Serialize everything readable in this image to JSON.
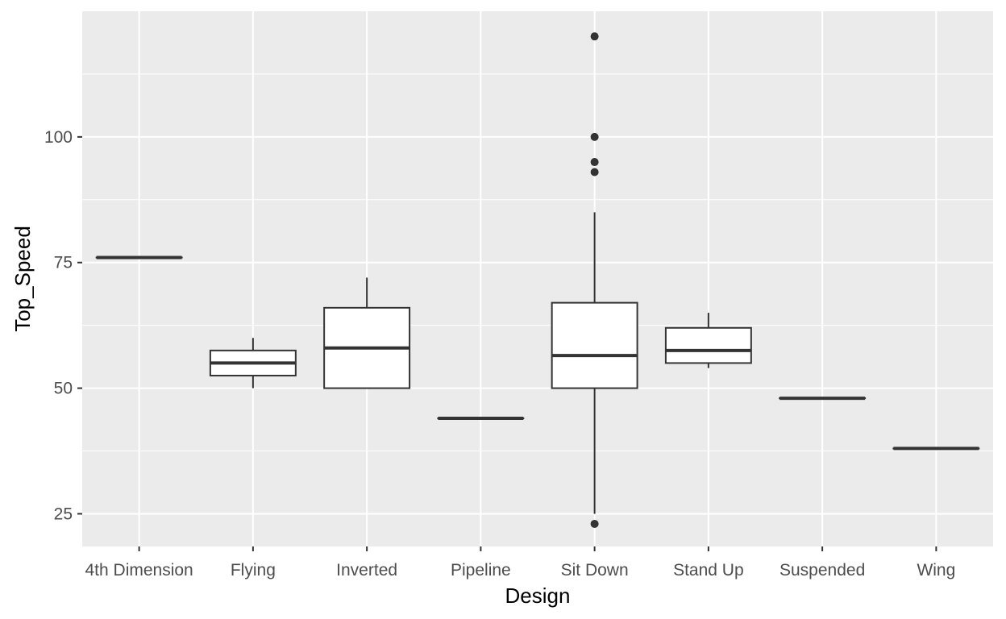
{
  "chart_data": {
    "type": "boxplot",
    "title": "",
    "xlabel": "Design",
    "ylabel": "Top_Speed",
    "ylim": [
      18.5,
      125
    ],
    "yticks": [
      25,
      50,
      75,
      100
    ],
    "y_minor_ticks": [
      37.5,
      62.5,
      87.5,
      112.5
    ],
    "grid": true,
    "legend": "none",
    "categories": [
      "4th Dimension",
      "Flying",
      "Inverted",
      "Pipeline",
      "Sit Down",
      "Stand Up",
      "Suspended",
      "Wing"
    ],
    "boxes": [
      {
        "category": "4th Dimension",
        "min": 76,
        "q1": 76,
        "median": 76,
        "q3": 76,
        "max": 76,
        "outliers": []
      },
      {
        "category": "Flying",
        "min": 50,
        "q1": 52.5,
        "median": 55,
        "q3": 57.5,
        "max": 60,
        "outliers": []
      },
      {
        "category": "Inverted",
        "min": 50,
        "q1": 50,
        "median": 58,
        "q3": 66,
        "max": 72,
        "outliers": []
      },
      {
        "category": "Pipeline",
        "min": 44,
        "q1": 44,
        "median": 44,
        "q3": 44,
        "max": 44,
        "outliers": []
      },
      {
        "category": "Sit Down",
        "min": 25,
        "q1": 50,
        "median": 56.5,
        "q3": 67,
        "max": 85,
        "outliers": [
          120,
          100,
          95,
          93,
          23
        ]
      },
      {
        "category": "Stand Up",
        "min": 54,
        "q1": 55,
        "median": 57.5,
        "q3": 62,
        "max": 65,
        "outliers": []
      },
      {
        "category": "Suspended",
        "min": 48,
        "q1": 48,
        "median": 48,
        "q3": 48,
        "max": 48,
        "outliers": []
      },
      {
        "category": "Wing",
        "min": 38,
        "q1": 38,
        "median": 38,
        "q3": 38,
        "max": 38,
        "outliers": []
      }
    ],
    "colors": {
      "panel": "#ebebeb",
      "grid": "#ffffff",
      "box_fill": "#ffffff",
      "box_stroke": "#333333",
      "tick_text": "#4d4d4d"
    }
  }
}
